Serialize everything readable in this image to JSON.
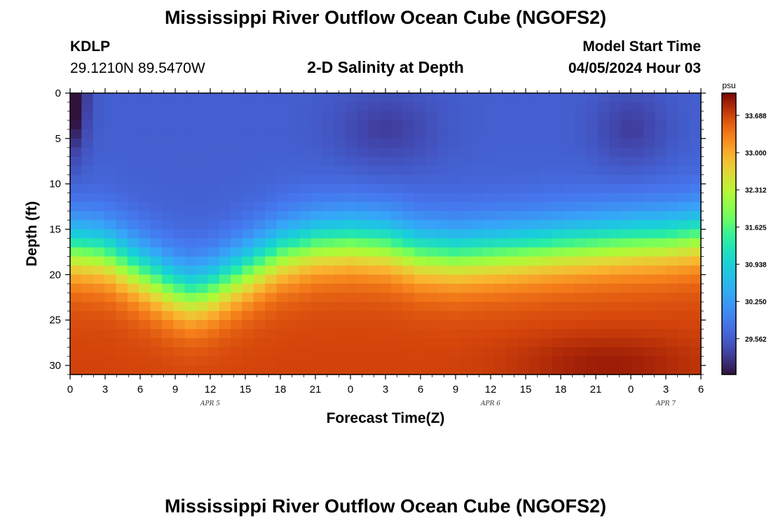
{
  "header": {
    "title": "Mississippi River Outflow Ocean Cube (NGOFS2)",
    "station_name": "KDLP",
    "station_coords": "29.1210N  89.5470W",
    "subtitle": "2-D Salinity at Depth",
    "model_start_label": "Model Start Time",
    "model_start_value": "04/05/2024 Hour 03"
  },
  "footer": {
    "title": "Mississippi River Outflow Ocean Cube (NGOFS2)"
  },
  "chart_data": {
    "type": "heatmap",
    "title": "2-D Salinity at Depth",
    "xlabel": "Forecast Time(Z)",
    "ylabel": "Depth (ft)",
    "x_ticks": [
      {
        "hours": 0,
        "label": "0"
      },
      {
        "hours": 3,
        "label": "3"
      },
      {
        "hours": 6,
        "label": "6"
      },
      {
        "hours": 9,
        "label": "9"
      },
      {
        "hours": 12,
        "label": "12"
      },
      {
        "hours": 15,
        "label": "15"
      },
      {
        "hours": 18,
        "label": "18"
      },
      {
        "hours": 21,
        "label": "21"
      },
      {
        "hours": 24,
        "label": "0"
      },
      {
        "hours": 27,
        "label": "3"
      },
      {
        "hours": 30,
        "label": "6"
      },
      {
        "hours": 33,
        "label": "9"
      },
      {
        "hours": 36,
        "label": "12"
      },
      {
        "hours": 39,
        "label": "15"
      },
      {
        "hours": 42,
        "label": "18"
      },
      {
        "hours": 45,
        "label": "21"
      },
      {
        "hours": 48,
        "label": "0"
      },
      {
        "hours": 51,
        "label": "3"
      },
      {
        "hours": 54,
        "label": "6"
      }
    ],
    "date_labels": [
      {
        "hours": 12,
        "label": "APR 5"
      },
      {
        "hours": 36,
        "label": "APR 6"
      },
      {
        "hours": 51,
        "label": "APR 7"
      }
    ],
    "x_range_hours": [
      0,
      54
    ],
    "y_ticks": [
      0,
      5,
      10,
      15,
      20,
      25,
      30
    ],
    "y_range": [
      0,
      31
    ],
    "colorbar": {
      "unit": "psu",
      "range": [
        28.9,
        34.1
      ],
      "tick_values": [
        33.688,
        33.0,
        32.312,
        31.625,
        30.938,
        30.25,
        29.562
      ],
      "tick_labels": [
        "33.688",
        "33.000",
        "32.312",
        "31.625",
        "30.938",
        "30.250",
        "29.562"
      ]
    },
    "halocline_depth_ft": [
      {
        "hours": 0,
        "depth": 17.0
      },
      {
        "hours": 3,
        "depth": 17.5
      },
      {
        "hours": 6,
        "depth": 19.5
      },
      {
        "hours": 9,
        "depth": 21.5
      },
      {
        "hours": 10.5,
        "depth": 22.0
      },
      {
        "hours": 12,
        "depth": 21.5
      },
      {
        "hours": 15,
        "depth": 19.5
      },
      {
        "hours": 18,
        "depth": 17.5
      },
      {
        "hours": 21,
        "depth": 16.5
      },
      {
        "hours": 24,
        "depth": 16.2
      },
      {
        "hours": 27,
        "depth": 16.5
      },
      {
        "hours": 30,
        "depth": 17.5
      },
      {
        "hours": 33,
        "depth": 17.8
      },
      {
        "hours": 36,
        "depth": 17.5
      },
      {
        "hours": 39,
        "depth": 17.2
      },
      {
        "hours": 42,
        "depth": 16.8
      },
      {
        "hours": 45,
        "depth": 16.5
      },
      {
        "hours": 48,
        "depth": 16.2
      },
      {
        "hours": 51,
        "depth": 16.0
      },
      {
        "hours": 54,
        "depth": 15.5
      }
    ],
    "surface_salinity_psu": 29.6,
    "bottom_salinity_psu": 33.7
  }
}
